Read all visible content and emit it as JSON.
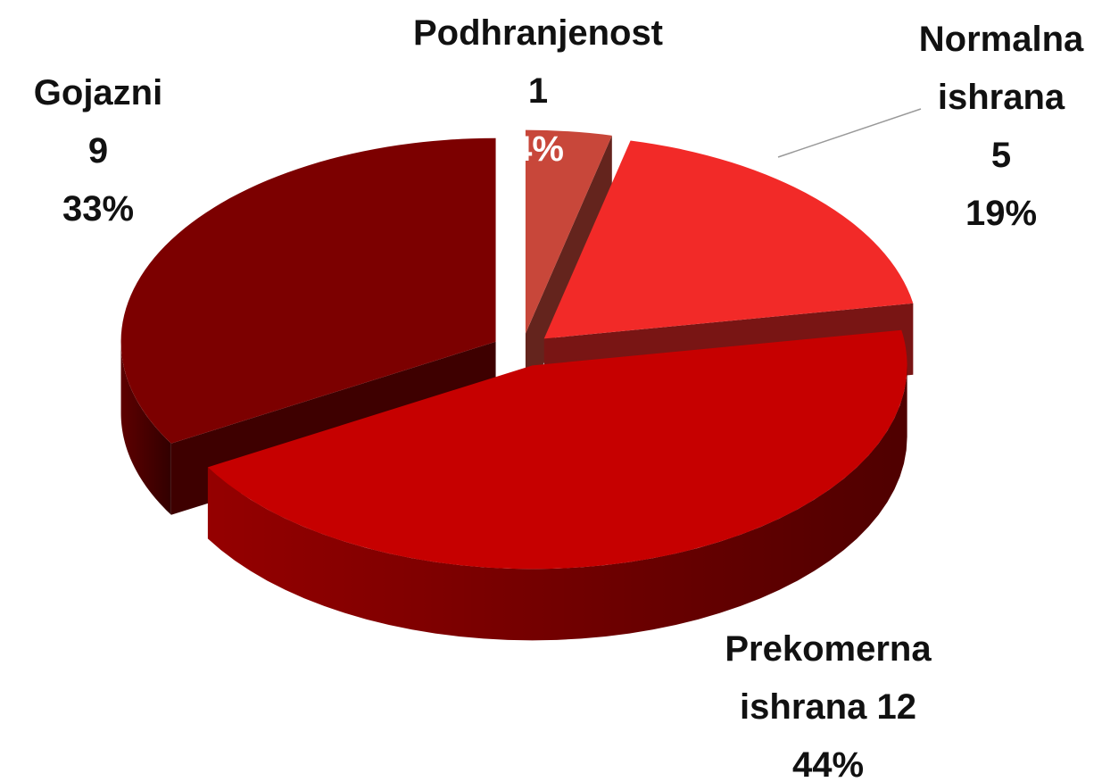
{
  "chart_data": {
    "type": "pie3d",
    "categories": [
      "Podhranjenost",
      "Normalna ishrana",
      "Prekomerna ishrana",
      "Gojazni"
    ],
    "values": [
      1,
      5,
      12,
      9
    ],
    "percentages": [
      4,
      19,
      44,
      33
    ],
    "percentage_labels": [
      "4%",
      "19%",
      "44%",
      "33%"
    ],
    "colors": [
      "#c8473a",
      "#f22a28",
      "#c60000",
      "#7c0000"
    ]
  }
}
